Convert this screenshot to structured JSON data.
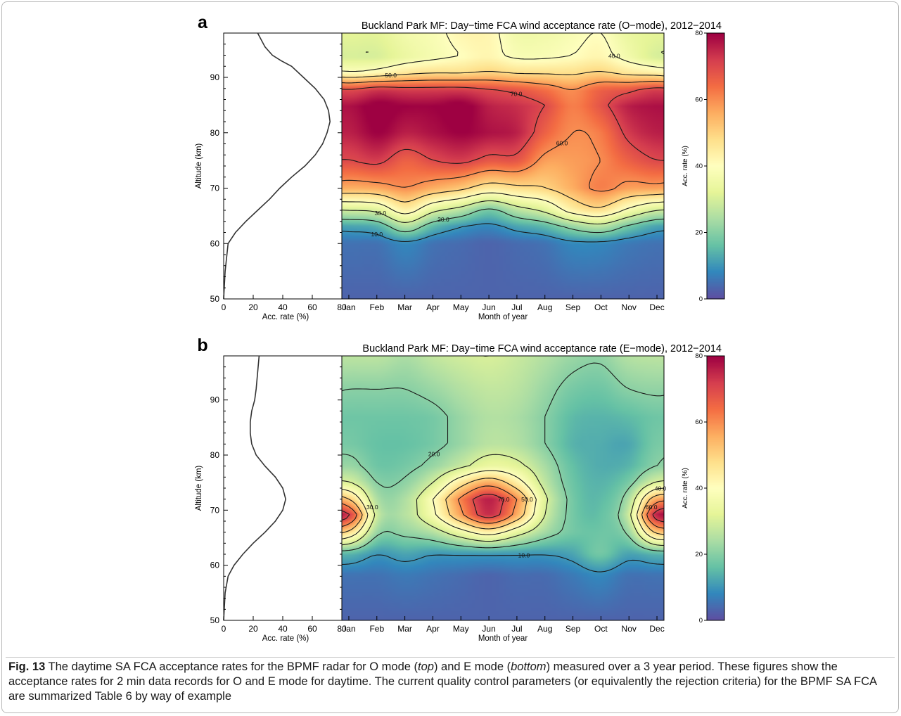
{
  "figure": {
    "caption": {
      "label": "Fig. 13",
      "text_1": " The daytime SA FCA acceptance rates for the BPMF radar for O mode (",
      "top": "top",
      "text_2": ") and E mode (",
      "bottom": "bottom",
      "text_3": ") measured over a 3 year period. These figures show the acceptance rates for 2 min data records for O and E mode for daytime. The current quality control parameters (or equivalently the rejection criteria) for the BPMF SA FCA are summarized Table 6 by way of example"
    }
  },
  "colormap": [
    "#5e4fa2",
    "#3288bd",
    "#66c2a5",
    "#abdda4",
    "#e6f598",
    "#ffffbf",
    "#fee08b",
    "#fdae61",
    "#f46d43",
    "#d53e4f",
    "#9e0142"
  ],
  "chart_data": [
    {
      "type": "line",
      "panel": "a",
      "ylabel": "Altitude (km)",
      "xlabel": "Acc. rate (%)",
      "xlim": [
        0,
        80
      ],
      "ylim": [
        50,
        98
      ],
      "xticks": [
        "0",
        "20",
        "40",
        "60",
        "80"
      ],
      "yticks": [
        "50",
        "60",
        "70",
        "80",
        "90"
      ],
      "series": [
        {
          "x": [
            0,
            1,
            3,
            8,
            15,
            23,
            31,
            38,
            46,
            55,
            62,
            67,
            70,
            72,
            71,
            68,
            62,
            54,
            46,
            39,
            33,
            28,
            25,
            23
          ],
          "y": [
            50,
            55,
            60,
            62,
            64,
            66,
            68,
            70,
            72,
            74,
            76,
            78,
            80,
            82,
            84,
            86,
            88,
            90,
            92,
            93,
            94,
            95.5,
            97,
            98
          ]
        }
      ]
    },
    {
      "type": "heatmap",
      "panel": "a",
      "title": "Buckland Park MF: Day−time FCA wind acceptance rate (O−mode), 2012−2014",
      "xlabel": "Month of year",
      "ylabel": "Altitude (km)",
      "colorbar_label": "Acc. rate (%)",
      "colorbar_range": [
        0,
        80
      ],
      "colorbar_ticks": [
        "0",
        "20",
        "40",
        "60",
        "80"
      ],
      "x": [
        "Jan",
        "Feb",
        "Mar",
        "Apr",
        "May",
        "Jun",
        "Jul",
        "Aug",
        "Sep",
        "Oct",
        "Nov",
        "Dec"
      ],
      "ylim": [
        50,
        98
      ],
      "contour_levels": [
        10,
        20,
        30,
        40,
        50,
        60,
        70
      ],
      "contour_labels_shown": [
        "10.0",
        "20.0",
        "30.0",
        "40.0",
        "50.0",
        "60.0",
        "70.0"
      ],
      "profiles": {
        "altitudes": [
          50,
          60,
          63,
          66,
          70,
          75,
          80,
          85,
          88,
          91,
          94,
          98
        ],
        "Jan": [
          3,
          5,
          12,
          30,
          56,
          70,
          76,
          78,
          70,
          40,
          30,
          32
        ],
        "Feb": [
          3,
          5,
          14,
          32,
          57,
          72,
          80,
          82,
          73,
          42,
          30,
          32
        ],
        "Mar": [
          3,
          8,
          25,
          44,
          60,
          66,
          76,
          80,
          72,
          46,
          34,
          36
        ],
        "Apr": [
          3,
          5,
          15,
          32,
          56,
          70,
          78,
          80,
          72,
          48,
          37,
          38
        ],
        "May": [
          3,
          4,
          10,
          26,
          52,
          72,
          80,
          82,
          72,
          48,
          40,
          42
        ],
        "Jun": [
          3,
          3,
          8,
          18,
          46,
          68,
          78,
          76,
          70,
          50,
          42,
          42
        ],
        "Jul": [
          3,
          4,
          12,
          26,
          48,
          68,
          76,
          74,
          68,
          48,
          38,
          36
        ],
        "Aug": [
          3,
          5,
          15,
          32,
          50,
          58,
          66,
          70,
          64,
          48,
          38,
          36
        ],
        "Sep": [
          3,
          8,
          22,
          44,
          56,
          58,
          60,
          62,
          60,
          48,
          40,
          38
        ],
        "Oct": [
          3,
          8,
          26,
          48,
          62,
          60,
          62,
          68,
          66,
          50,
          42,
          40
        ],
        "Nov": [
          3,
          6,
          18,
          38,
          58,
          66,
          72,
          76,
          68,
          46,
          36,
          34
        ],
        "Dec": [
          3,
          5,
          12,
          30,
          58,
          70,
          76,
          78,
          72,
          44,
          30,
          32
        ]
      }
    },
    {
      "type": "line",
      "panel": "b",
      "ylabel": "Altitude (km)",
      "xlabel": "Acc. rate (%)",
      "xlim": [
        0,
        80
      ],
      "ylim": [
        50,
        98
      ],
      "xticks": [
        "0",
        "20",
        "40",
        "60",
        "80"
      ],
      "yticks": [
        "50",
        "60",
        "70",
        "80",
        "90"
      ],
      "series": [
        {
          "x": [
            0,
            1,
            3,
            7,
            13,
            20,
            28,
            35,
            40,
            42,
            40,
            35,
            28,
            22,
            19,
            18,
            18,
            19,
            21,
            22,
            23,
            24
          ],
          "y": [
            50,
            55,
            58,
            60,
            62,
            64,
            66,
            68,
            70,
            72,
            74,
            76,
            78,
            80,
            82,
            84,
            86,
            88,
            90,
            92,
            95,
            98
          ]
        }
      ]
    },
    {
      "type": "heatmap",
      "panel": "b",
      "title": "Buckland Park MF: Day−time FCA wind acceptance rate (E−mode), 2012−2014",
      "xlabel": "Month of year",
      "ylabel": "Altitude (km)",
      "colorbar_label": "Acc. rate (%)",
      "colorbar_range": [
        0,
        80
      ],
      "colorbar_ticks": [
        "0",
        "20",
        "40",
        "60",
        "80"
      ],
      "x": [
        "Jan",
        "Feb",
        "Mar",
        "Apr",
        "May",
        "Jun",
        "Jul",
        "Aug",
        "Sep",
        "Oct",
        "Nov",
        "Dec"
      ],
      "ylim": [
        50,
        98
      ],
      "contour_levels": [
        10,
        20,
        30,
        40,
        50,
        60,
        70
      ],
      "contour_labels_shown": [
        "10.0",
        "20.0",
        "30.0",
        "40.0",
        "50.0",
        "60.0",
        "70.0"
      ],
      "profiles": {
        "altitudes": [
          50,
          58,
          62,
          66,
          69,
          72,
          75,
          78,
          82,
          87,
          92,
          98
        ],
        "Jan": [
          3,
          5,
          14,
          48,
          72,
          50,
          30,
          22,
          18,
          17,
          20,
          26
        ],
        "Feb": [
          3,
          5,
          10,
          22,
          28,
          24,
          20,
          17,
          16,
          17,
          20,
          26
        ],
        "Mar": [
          3,
          6,
          12,
          22,
          26,
          25,
          21,
          18,
          16,
          17,
          20,
          24
        ],
        "Apr": [
          3,
          5,
          10,
          26,
          38,
          40,
          30,
          22,
          18,
          18,
          22,
          27
        ],
        "May": [
          3,
          4,
          10,
          36,
          58,
          62,
          46,
          28,
          22,
          22,
          25,
          29
        ],
        "Jun": [
          3,
          3,
          10,
          44,
          74,
          76,
          56,
          34,
          26,
          25,
          27,
          30
        ],
        "Jul": [
          3,
          4,
          10,
          34,
          56,
          60,
          44,
          32,
          25,
          24,
          26,
          28
        ],
        "Aug": [
          3,
          4,
          10,
          24,
          30,
          32,
          27,
          24,
          20,
          20,
          22,
          25
        ],
        "Sep": [
          3,
          6,
          12,
          18,
          18,
          18,
          17,
          16,
          14,
          15,
          18,
          22
        ],
        "Oct": [
          3,
          8,
          18,
          17,
          16,
          15,
          14,
          13,
          13,
          14,
          17,
          21
        ],
        "Nov": [
          3,
          5,
          12,
          22,
          28,
          24,
          18,
          14,
          12,
          15,
          20,
          25
        ],
        "Dec": [
          3,
          5,
          14,
          52,
          76,
          56,
          30,
          20,
          18,
          17,
          21,
          26
        ]
      }
    }
  ]
}
